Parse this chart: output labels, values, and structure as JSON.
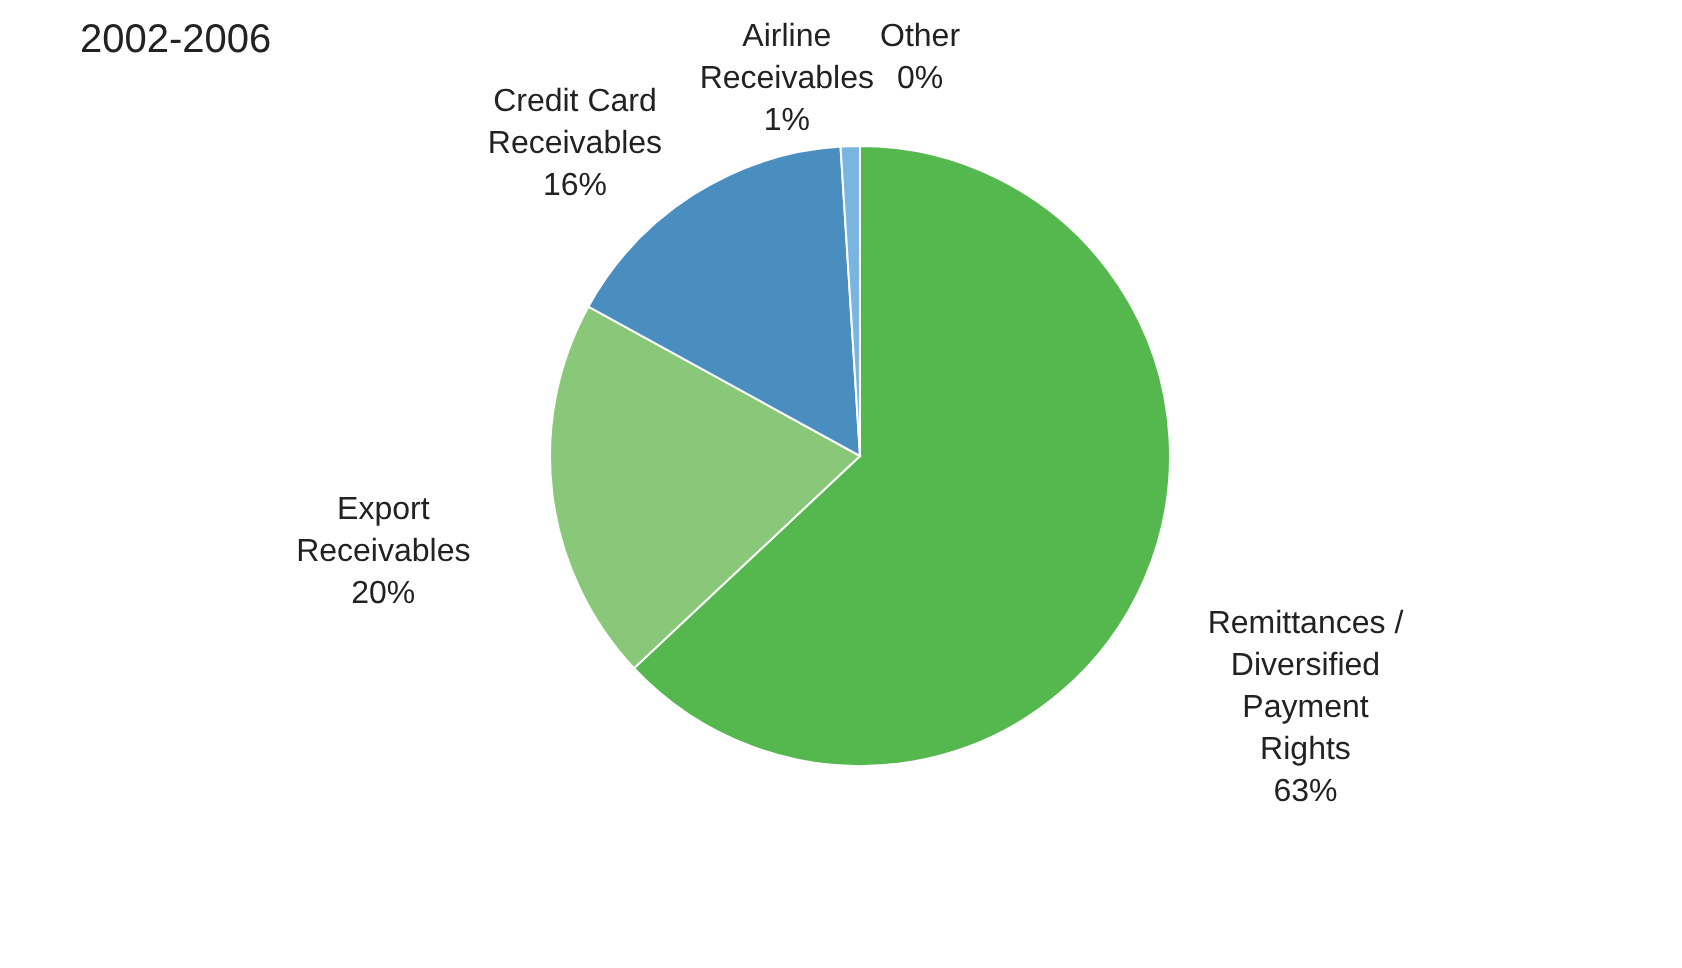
{
  "chart_data": {
    "type": "pie",
    "title": "2002-2006",
    "categories": [
      "Other",
      "Remittances / Diversified Payment Rights",
      "Export Receivables",
      "Credit Card Receivables",
      "Airline Receivables"
    ],
    "values": [
      0,
      63,
      20,
      16,
      1
    ],
    "value_labels": [
      "0%",
      "63%",
      "20%",
      "16%",
      "1%"
    ],
    "colors": [
      "#3a9aa8",
      "#55b84f",
      "#88c878",
      "#4a8ebf",
      "#7ab4e0"
    ],
    "legend": false
  }
}
